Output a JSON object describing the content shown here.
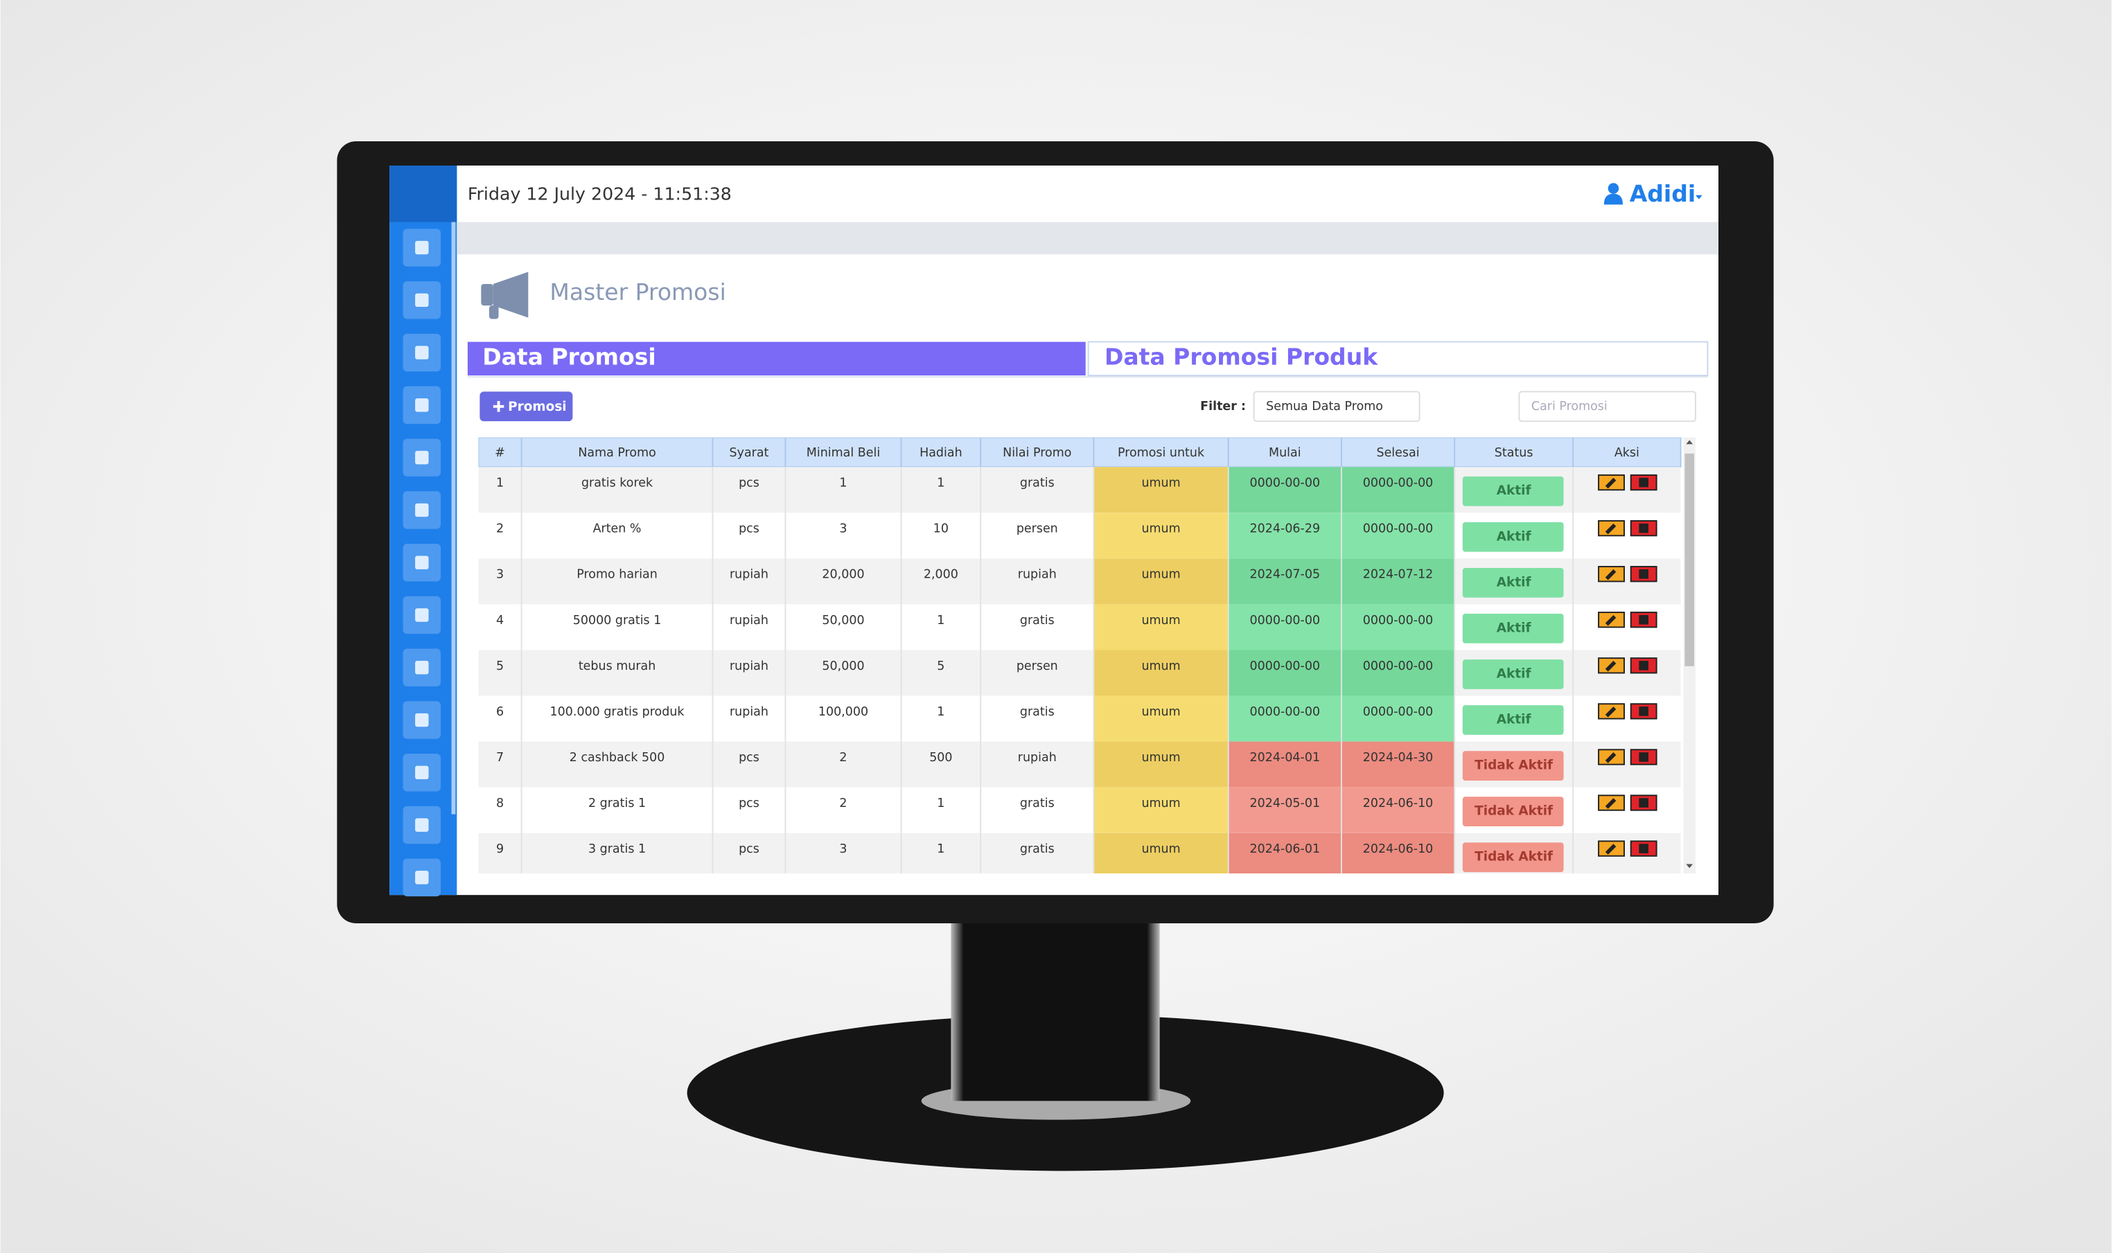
{
  "header": {
    "datetime": "Friday 12 July 2024 - 11:51:38",
    "user": "Adidi"
  },
  "page_title": "Master Promosi",
  "tabs": [
    "Data Promosi",
    "Data Promosi Produk"
  ],
  "toolbar": {
    "add_button": "Promosi",
    "filter_label": "Filter :",
    "filter_value": "Semua Data Promo",
    "search_placeholder": "Cari Promosi"
  },
  "table": {
    "columns": [
      "#",
      "Nama Promo",
      "Syarat",
      "Minimal Beli",
      "Hadiah",
      "Nilai Promo",
      "Promosi untuk",
      "Mulai",
      "Selesai",
      "Status",
      "Aksi"
    ],
    "rows": [
      [
        "1",
        "gratis korek",
        "pcs",
        "1",
        "1",
        "gratis",
        "umum",
        "0000-00-00",
        "0000-00-00",
        "Aktif"
      ],
      [
        "2",
        "Arten %",
        "pcs",
        "3",
        "10",
        "persen",
        "umum",
        "2024-06-29",
        "0000-00-00",
        "Aktif"
      ],
      [
        "3",
        "Promo harian",
        "rupiah",
        "20,000",
        "2,000",
        "rupiah",
        "umum",
        "2024-07-05",
        "2024-07-12",
        "Aktif"
      ],
      [
        "4",
        "50000 gratis 1",
        "rupiah",
        "50,000",
        "1",
        "gratis",
        "umum",
        "0000-00-00",
        "0000-00-00",
        "Aktif"
      ],
      [
        "5",
        "tebus murah",
        "rupiah",
        "50,000",
        "5",
        "persen",
        "umum",
        "0000-00-00",
        "0000-00-00",
        "Aktif"
      ],
      [
        "6",
        "100.000 gratis produk",
        "rupiah",
        "100,000",
        "1",
        "gratis",
        "umum",
        "0000-00-00",
        "0000-00-00",
        "Aktif"
      ],
      [
        "7",
        "2 cashback 500",
        "pcs",
        "2",
        "500",
        "rupiah",
        "umum",
        "2024-04-01",
        "2024-04-30",
        "Tidak Aktif"
      ],
      [
        "8",
        "2 gratis 1",
        "pcs",
        "2",
        "1",
        "gratis",
        "umum",
        "2024-05-01",
        "2024-06-10",
        "Tidak Aktif"
      ],
      [
        "9",
        "3 gratis 1",
        "pcs",
        "3",
        "1",
        "gratis",
        "umum",
        "2024-06-01",
        "2024-06-10",
        "Tidak Aktif"
      ]
    ]
  }
}
